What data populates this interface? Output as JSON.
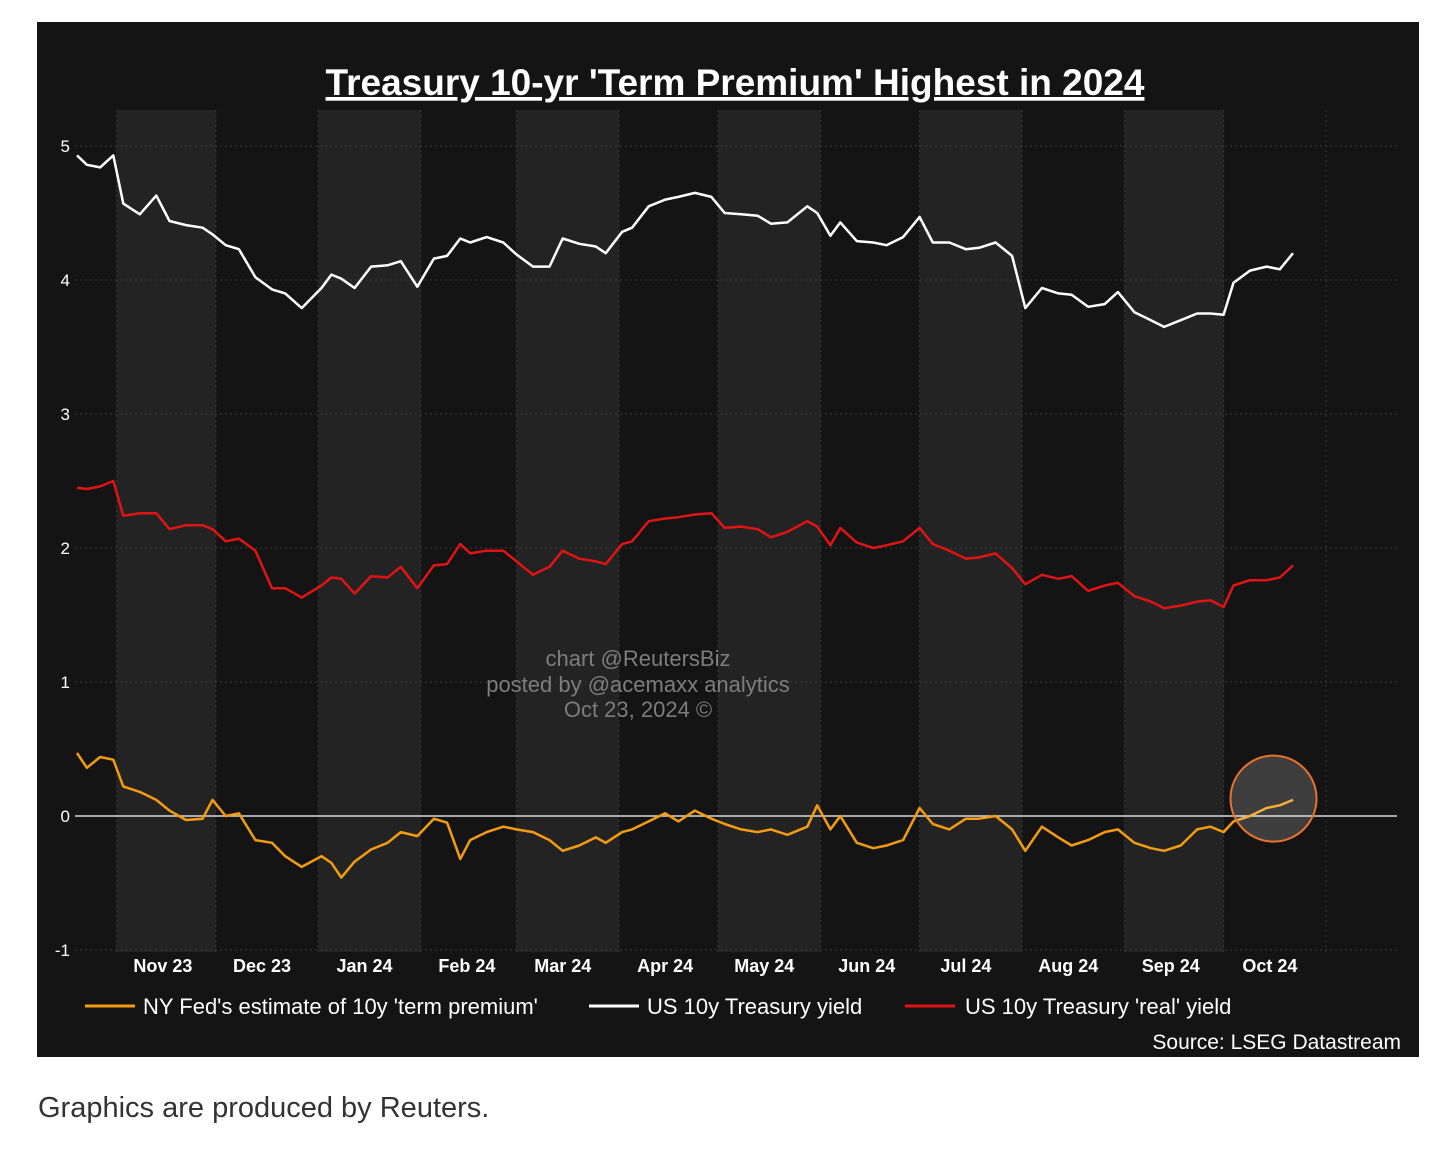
{
  "page": {
    "caption": "Graphics are produced by Reuters."
  },
  "watermark": {
    "line1": "chart @ReutersBiz",
    "line2": "posted by @acemaxx analytics",
    "line3": "Oct 23, 2024 ©"
  },
  "colors": {
    "background": "#141414",
    "band": "#232323",
    "term_premium": "#f39c12",
    "yield": "#ffffff",
    "real_yield": "#e01414",
    "highlight_circle": "#e8732a"
  },
  "chart_data": {
    "type": "line",
    "title": "Treasury 10-yr 'Term Premium' Highest in 2024",
    "source": "Source: LSEG Datastream",
    "x_tick_labels": [
      "Nov 23",
      "Dec 23",
      "Jan 24",
      "Feb 24",
      "Mar 24",
      "Apr 24",
      "May 24",
      "Jun 24",
      "Jul 24",
      "Aug 24",
      "Sep 24",
      "Oct 24"
    ],
    "x_range": [
      "2023-10-20",
      "2024-10-22"
    ],
    "ylim": [
      -1,
      5
    ],
    "y_ticks": [
      -1,
      0,
      1,
      2,
      3,
      4,
      5
    ],
    "grid": true,
    "legend_position": "bottom",
    "annotation": "circle highlighting latest term premium reading",
    "series": [
      {
        "name": "NY Fed's estimate of 10y 'term premium'",
        "color": "#f39c12",
        "points": [
          [
            "2023-10-20",
            0.47
          ],
          [
            "2023-10-23",
            0.36
          ],
          [
            "2023-10-27",
            0.44
          ],
          [
            "2023-10-31",
            0.42
          ],
          [
            "2023-11-03",
            0.22
          ],
          [
            "2023-11-08",
            0.18
          ],
          [
            "2023-11-13",
            0.12
          ],
          [
            "2023-11-17",
            0.04
          ],
          [
            "2023-11-22",
            -0.03
          ],
          [
            "2023-11-27",
            -0.02
          ],
          [
            "2023-11-30",
            0.12
          ],
          [
            "2023-12-04",
            0.0
          ],
          [
            "2023-12-08",
            0.02
          ],
          [
            "2023-12-13",
            -0.18
          ],
          [
            "2023-12-18",
            -0.2
          ],
          [
            "2023-12-22",
            -0.3
          ],
          [
            "2023-12-27",
            -0.38
          ],
          [
            "2024-01-02",
            -0.3
          ],
          [
            "2024-01-05",
            -0.35
          ],
          [
            "2024-01-08",
            -0.46
          ],
          [
            "2024-01-12",
            -0.34
          ],
          [
            "2024-01-17",
            -0.25
          ],
          [
            "2024-01-22",
            -0.2
          ],
          [
            "2024-01-26",
            -0.12
          ],
          [
            "2024-01-31",
            -0.15
          ],
          [
            "2024-02-05",
            -0.02
          ],
          [
            "2024-02-09",
            -0.05
          ],
          [
            "2024-02-13",
            -0.32
          ],
          [
            "2024-02-16",
            -0.18
          ],
          [
            "2024-02-21",
            -0.12
          ],
          [
            "2024-02-26",
            -0.08
          ],
          [
            "2024-03-01",
            -0.1
          ],
          [
            "2024-03-06",
            -0.12
          ],
          [
            "2024-03-11",
            -0.18
          ],
          [
            "2024-03-15",
            -0.26
          ],
          [
            "2024-03-20",
            -0.22
          ],
          [
            "2024-03-25",
            -0.16
          ],
          [
            "2024-03-28",
            -0.2
          ],
          [
            "2024-04-02",
            -0.12
          ],
          [
            "2024-04-05",
            -0.1
          ],
          [
            "2024-04-10",
            -0.04
          ],
          [
            "2024-04-15",
            0.02
          ],
          [
            "2024-04-19",
            -0.04
          ],
          [
            "2024-04-24",
            0.04
          ],
          [
            "2024-04-29",
            -0.02
          ],
          [
            "2024-05-03",
            -0.06
          ],
          [
            "2024-05-08",
            -0.1
          ],
          [
            "2024-05-13",
            -0.12
          ],
          [
            "2024-05-17",
            -0.1
          ],
          [
            "2024-05-22",
            -0.14
          ],
          [
            "2024-05-28",
            -0.08
          ],
          [
            "2024-05-31",
            0.08
          ],
          [
            "2024-06-04",
            -0.1
          ],
          [
            "2024-06-07",
            0.0
          ],
          [
            "2024-06-12",
            -0.2
          ],
          [
            "2024-06-17",
            -0.24
          ],
          [
            "2024-06-21",
            -0.22
          ],
          [
            "2024-06-26",
            -0.18
          ],
          [
            "2024-07-01",
            0.06
          ],
          [
            "2024-07-05",
            -0.06
          ],
          [
            "2024-07-10",
            -0.1
          ],
          [
            "2024-07-15",
            -0.02
          ],
          [
            "2024-07-19",
            -0.02
          ],
          [
            "2024-07-24",
            0.0
          ],
          [
            "2024-07-29",
            -0.1
          ],
          [
            "2024-08-02",
            -0.26
          ],
          [
            "2024-08-07",
            -0.08
          ],
          [
            "2024-08-12",
            -0.16
          ],
          [
            "2024-08-16",
            -0.22
          ],
          [
            "2024-08-21",
            -0.18
          ],
          [
            "2024-08-26",
            -0.12
          ],
          [
            "2024-08-30",
            -0.1
          ],
          [
            "2024-09-04",
            -0.2
          ],
          [
            "2024-09-09",
            -0.24
          ],
          [
            "2024-09-13",
            -0.26
          ],
          [
            "2024-09-18",
            -0.22
          ],
          [
            "2024-09-23",
            -0.1
          ],
          [
            "2024-09-27",
            -0.08
          ],
          [
            "2024-10-01",
            -0.12
          ],
          [
            "2024-10-04",
            -0.04
          ],
          [
            "2024-10-09",
            0.0
          ],
          [
            "2024-10-14",
            0.06
          ],
          [
            "2024-10-18",
            0.08
          ],
          [
            "2024-10-22",
            0.12
          ]
        ]
      },
      {
        "name": "US 10y Treasury yield",
        "color": "#ffffff",
        "points": [
          [
            "2023-10-20",
            4.93
          ],
          [
            "2023-10-23",
            4.86
          ],
          [
            "2023-10-27",
            4.84
          ],
          [
            "2023-10-31",
            4.93
          ],
          [
            "2023-11-03",
            4.57
          ],
          [
            "2023-11-08",
            4.49
          ],
          [
            "2023-11-13",
            4.63
          ],
          [
            "2023-11-17",
            4.44
          ],
          [
            "2023-11-22",
            4.41
          ],
          [
            "2023-11-27",
            4.39
          ],
          [
            "2023-11-30",
            4.34
          ],
          [
            "2023-12-04",
            4.26
          ],
          [
            "2023-12-08",
            4.23
          ],
          [
            "2023-12-13",
            4.02
          ],
          [
            "2023-12-18",
            3.93
          ],
          [
            "2023-12-22",
            3.9
          ],
          [
            "2023-12-27",
            3.79
          ],
          [
            "2024-01-02",
            3.94
          ],
          [
            "2024-01-05",
            4.04
          ],
          [
            "2024-01-08",
            4.01
          ],
          [
            "2024-01-12",
            3.94
          ],
          [
            "2024-01-17",
            4.1
          ],
          [
            "2024-01-22",
            4.11
          ],
          [
            "2024-01-26",
            4.14
          ],
          [
            "2024-01-31",
            3.95
          ],
          [
            "2024-02-05",
            4.16
          ],
          [
            "2024-02-09",
            4.18
          ],
          [
            "2024-02-13",
            4.31
          ],
          [
            "2024-02-16",
            4.28
          ],
          [
            "2024-02-21",
            4.32
          ],
          [
            "2024-02-26",
            4.28
          ],
          [
            "2024-03-01",
            4.19
          ],
          [
            "2024-03-06",
            4.1
          ],
          [
            "2024-03-11",
            4.1
          ],
          [
            "2024-03-15",
            4.31
          ],
          [
            "2024-03-20",
            4.27
          ],
          [
            "2024-03-25",
            4.25
          ],
          [
            "2024-03-28",
            4.2
          ],
          [
            "2024-04-02",
            4.36
          ],
          [
            "2024-04-05",
            4.39
          ],
          [
            "2024-04-10",
            4.55
          ],
          [
            "2024-04-15",
            4.6
          ],
          [
            "2024-04-19",
            4.62
          ],
          [
            "2024-04-24",
            4.65
          ],
          [
            "2024-04-29",
            4.62
          ],
          [
            "2024-05-03",
            4.5
          ],
          [
            "2024-05-08",
            4.49
          ],
          [
            "2024-05-13",
            4.48
          ],
          [
            "2024-05-17",
            4.42
          ],
          [
            "2024-05-22",
            4.43
          ],
          [
            "2024-05-28",
            4.55
          ],
          [
            "2024-05-31",
            4.5
          ],
          [
            "2024-06-04",
            4.33
          ],
          [
            "2024-06-07",
            4.43
          ],
          [
            "2024-06-12",
            4.29
          ],
          [
            "2024-06-17",
            4.28
          ],
          [
            "2024-06-21",
            4.26
          ],
          [
            "2024-06-26",
            4.32
          ],
          [
            "2024-07-01",
            4.47
          ],
          [
            "2024-07-05",
            4.28
          ],
          [
            "2024-07-10",
            4.28
          ],
          [
            "2024-07-15",
            4.23
          ],
          [
            "2024-07-19",
            4.24
          ],
          [
            "2024-07-24",
            4.28
          ],
          [
            "2024-07-29",
            4.18
          ],
          [
            "2024-08-02",
            3.79
          ],
          [
            "2024-08-07",
            3.94
          ],
          [
            "2024-08-12",
            3.9
          ],
          [
            "2024-08-16",
            3.89
          ],
          [
            "2024-08-21",
            3.8
          ],
          [
            "2024-08-26",
            3.82
          ],
          [
            "2024-08-30",
            3.91
          ],
          [
            "2024-09-04",
            3.76
          ],
          [
            "2024-09-09",
            3.7
          ],
          [
            "2024-09-13",
            3.65
          ],
          [
            "2024-09-18",
            3.7
          ],
          [
            "2024-09-23",
            3.75
          ],
          [
            "2024-09-27",
            3.75
          ],
          [
            "2024-10-01",
            3.74
          ],
          [
            "2024-10-04",
            3.98
          ],
          [
            "2024-10-09",
            4.07
          ],
          [
            "2024-10-14",
            4.1
          ],
          [
            "2024-10-18",
            4.08
          ],
          [
            "2024-10-22",
            4.2
          ]
        ]
      },
      {
        "name": "US 10y Treasury 'real' yield",
        "color": "#e01414",
        "points": [
          [
            "2023-10-20",
            2.45
          ],
          [
            "2023-10-23",
            2.44
          ],
          [
            "2023-10-27",
            2.46
          ],
          [
            "2023-10-31",
            2.5
          ],
          [
            "2023-11-03",
            2.24
          ],
          [
            "2023-11-08",
            2.26
          ],
          [
            "2023-11-13",
            2.26
          ],
          [
            "2023-11-17",
            2.14
          ],
          [
            "2023-11-22",
            2.17
          ],
          [
            "2023-11-27",
            2.17
          ],
          [
            "2023-11-30",
            2.14
          ],
          [
            "2023-12-04",
            2.05
          ],
          [
            "2023-12-08",
            2.07
          ],
          [
            "2023-12-13",
            1.98
          ],
          [
            "2023-12-18",
            1.7
          ],
          [
            "2023-12-22",
            1.7
          ],
          [
            "2023-12-27",
            1.63
          ],
          [
            "2024-01-02",
            1.72
          ],
          [
            "2024-01-05",
            1.78
          ],
          [
            "2024-01-08",
            1.77
          ],
          [
            "2024-01-12",
            1.66
          ],
          [
            "2024-01-17",
            1.79
          ],
          [
            "2024-01-22",
            1.78
          ],
          [
            "2024-01-26",
            1.86
          ],
          [
            "2024-01-31",
            1.7
          ],
          [
            "2024-02-05",
            1.87
          ],
          [
            "2024-02-09",
            1.88
          ],
          [
            "2024-02-13",
            2.03
          ],
          [
            "2024-02-16",
            1.96
          ],
          [
            "2024-02-21",
            1.98
          ],
          [
            "2024-02-26",
            1.98
          ],
          [
            "2024-03-01",
            1.9
          ],
          [
            "2024-03-06",
            1.8
          ],
          [
            "2024-03-11",
            1.86
          ],
          [
            "2024-03-15",
            1.98
          ],
          [
            "2024-03-20",
            1.92
          ],
          [
            "2024-03-25",
            1.9
          ],
          [
            "2024-03-28",
            1.88
          ],
          [
            "2024-04-02",
            2.03
          ],
          [
            "2024-04-05",
            2.05
          ],
          [
            "2024-04-10",
            2.2
          ],
          [
            "2024-04-15",
            2.22
          ],
          [
            "2024-04-19",
            2.23
          ],
          [
            "2024-04-24",
            2.25
          ],
          [
            "2024-04-29",
            2.26
          ],
          [
            "2024-05-03",
            2.15
          ],
          [
            "2024-05-08",
            2.16
          ],
          [
            "2024-05-13",
            2.14
          ],
          [
            "2024-05-17",
            2.08
          ],
          [
            "2024-05-22",
            2.12
          ],
          [
            "2024-05-28",
            2.2
          ],
          [
            "2024-05-31",
            2.16
          ],
          [
            "2024-06-04",
            2.02
          ],
          [
            "2024-06-07",
            2.15
          ],
          [
            "2024-06-12",
            2.04
          ],
          [
            "2024-06-17",
            2.0
          ],
          [
            "2024-06-21",
            2.02
          ],
          [
            "2024-06-26",
            2.05
          ],
          [
            "2024-07-01",
            2.15
          ],
          [
            "2024-07-05",
            2.03
          ],
          [
            "2024-07-10",
            1.98
          ],
          [
            "2024-07-15",
            1.92
          ],
          [
            "2024-07-19",
            1.93
          ],
          [
            "2024-07-24",
            1.96
          ],
          [
            "2024-07-29",
            1.85
          ],
          [
            "2024-08-02",
            1.73
          ],
          [
            "2024-08-07",
            1.8
          ],
          [
            "2024-08-12",
            1.77
          ],
          [
            "2024-08-16",
            1.79
          ],
          [
            "2024-08-21",
            1.68
          ],
          [
            "2024-08-26",
            1.72
          ],
          [
            "2024-08-30",
            1.74
          ],
          [
            "2024-09-04",
            1.64
          ],
          [
            "2024-09-09",
            1.6
          ],
          [
            "2024-09-13",
            1.55
          ],
          [
            "2024-09-18",
            1.57
          ],
          [
            "2024-09-23",
            1.6
          ],
          [
            "2024-09-27",
            1.61
          ],
          [
            "2024-10-01",
            1.56
          ],
          [
            "2024-10-04",
            1.72
          ],
          [
            "2024-10-09",
            1.76
          ],
          [
            "2024-10-14",
            1.76
          ],
          [
            "2024-10-18",
            1.78
          ],
          [
            "2024-10-22",
            1.87
          ]
        ]
      }
    ]
  }
}
